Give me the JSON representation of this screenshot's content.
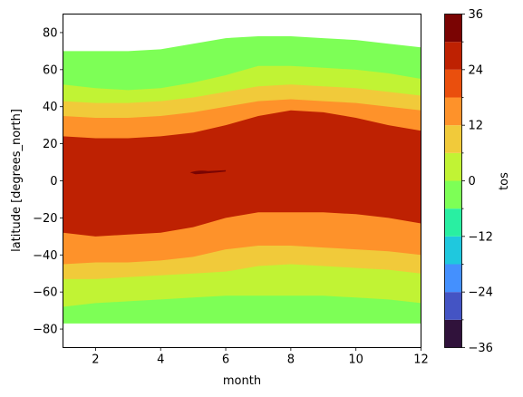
{
  "chart_data": {
    "type": "contour",
    "xlabel": "month",
    "ylabel": "latitude [degrees_north]",
    "xlim": [
      1,
      12
    ],
    "ylim": [
      -90,
      90
    ],
    "x_ticks": [
      "2",
      "4",
      "6",
      "8",
      "10",
      "12"
    ],
    "y_ticks": [
      "80",
      "60",
      "40",
      "20",
      "0",
      "−20",
      "−40",
      "−60",
      "−80"
    ],
    "colorbar": {
      "label": "tos",
      "min": -36,
      "max": 36,
      "ticks": [
        "36",
        "24",
        "12",
        "0",
        "−12",
        "−24",
        "−36"
      ],
      "levels": [
        -36,
        -30,
        -24,
        -18,
        -12,
        -6,
        0,
        6,
        12,
        18,
        24,
        30,
        36
      ],
      "colors": [
        "#30123b",
        "#4454c4",
        "#4490fe",
        "#1fc8de",
        "#29efa2",
        "#7dff56",
        "#c1f334",
        "#f1ca3a",
        "#fe922a",
        "#ea4f0d",
        "#be2102",
        "#7a0403"
      ]
    },
    "data_coverage_lat": [
      -77,
      90
    ],
    "bands": [
      {
        "from_level": 0,
        "to_level": 6,
        "color": "#7dff56",
        "upper_boundary_lat": [
          70,
          70,
          70,
          71,
          74,
          77,
          78,
          78,
          77,
          76,
          74,
          72
        ],
        "lower_boundary_lat": [
          -77,
          -77,
          -77,
          -77,
          -77,
          -77,
          -77,
          -77,
          -77,
          -77,
          -77,
          -77
        ]
      },
      {
        "from_level": 6,
        "to_level": 12,
        "color": "#c1f334",
        "north_lat": [
          52,
          50,
          49,
          50,
          53,
          57,
          62,
          62,
          61,
          60,
          58,
          55
        ],
        "south_lat": [
          -68,
          -66,
          -65,
          -64,
          -63,
          -62,
          -62,
          -62,
          -62,
          -63,
          -64,
          -66
        ]
      },
      {
        "from_level": 12,
        "to_level": 18,
        "color": "#f1ca3a",
        "north_lat": [
          43,
          42,
          42,
          43,
          45,
          48,
          51,
          52,
          51,
          50,
          48,
          46
        ],
        "south_lat": [
          -53,
          -53,
          -52,
          -51,
          -50,
          -49,
          -46,
          -45,
          -46,
          -47,
          -48,
          -50
        ]
      },
      {
        "from_level": 18,
        "to_level": 24,
        "color": "#fe922a",
        "north_lat": [
          35,
          34,
          34,
          35,
          37,
          40,
          43,
          44,
          43,
          42,
          40,
          38
        ],
        "south_lat": [
          -45,
          -44,
          -44,
          -43,
          -41,
          -37,
          -35,
          -35,
          -36,
          -37,
          -38,
          -40
        ]
      },
      {
        "from_level": 24,
        "to_level": 30,
        "color": "#be2102",
        "north_lat": [
          24,
          23,
          23,
          24,
          26,
          30,
          35,
          38,
          37,
          34,
          30,
          27
        ],
        "south_lat": [
          -28,
          -30,
          -29,
          -28,
          -25,
          -20,
          -17,
          -17,
          -17,
          -18,
          -20,
          -23
        ]
      },
      {
        "from_level": 30,
        "to_level": 36,
        "color": "#7a0403",
        "patch": {
          "month_start": 4.9,
          "month_end": 6.0,
          "lat_center": 4.5
        }
      }
    ]
  }
}
